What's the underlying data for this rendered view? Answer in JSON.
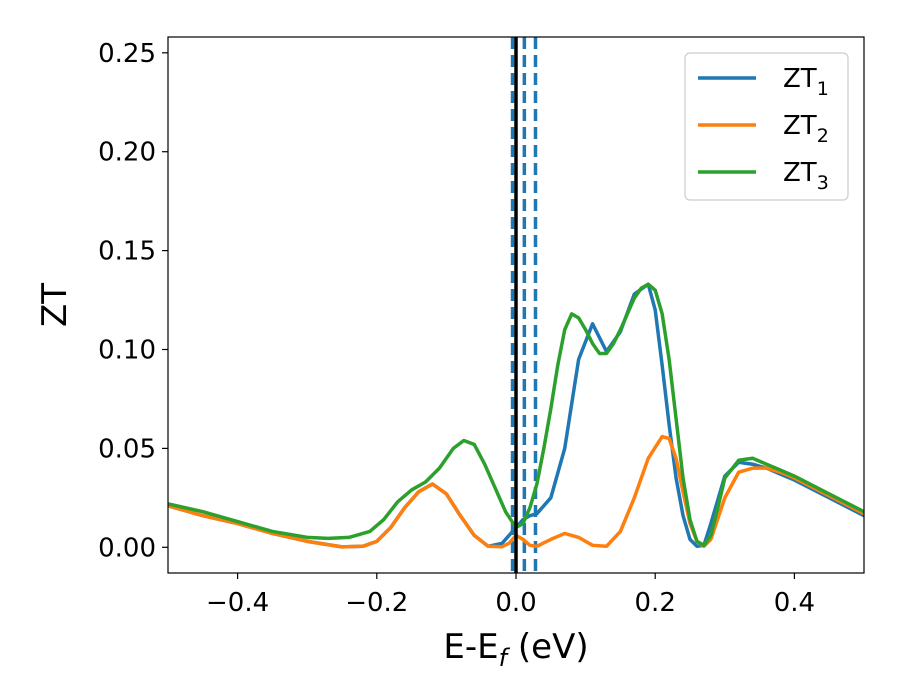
{
  "chart_data": {
    "type": "line",
    "xlabel": {
      "base": "E-E",
      "sub": "f",
      "suffix": " (eV)"
    },
    "ylabel": "ZT",
    "xlim": [
      -0.5,
      0.5
    ],
    "ylim": [
      -0.013,
      0.258
    ],
    "xticks": [
      -0.4,
      -0.2,
      0.0,
      0.2,
      0.4
    ],
    "xtick_labels": [
      "−0.4",
      "−0.2",
      "0.0",
      "0.2",
      "0.4"
    ],
    "yticks": [
      0.0,
      0.05,
      0.1,
      0.15,
      0.2,
      0.25
    ],
    "ytick_labels": [
      "0.00",
      "0.05",
      "0.10",
      "0.15",
      "0.20",
      "0.25"
    ],
    "grid": false,
    "legend_position": "top-right",
    "reference_lines": {
      "solid_black_x": 0.0,
      "dashed_blue_x": [
        -0.005,
        0.012,
        0.028
      ]
    },
    "series": [
      {
        "name": "ZT",
        "sub": "1",
        "color": "#1f77b4",
        "x": [
          -0.5,
          -0.45,
          -0.4,
          -0.35,
          -0.3,
          -0.25,
          -0.22,
          -0.2,
          -0.18,
          -0.16,
          -0.14,
          -0.12,
          -0.1,
          -0.08,
          -0.06,
          -0.04,
          -0.02,
          0.0,
          0.01,
          0.02,
          0.03,
          0.05,
          0.07,
          0.09,
          0.11,
          0.13,
          0.15,
          0.17,
          0.19,
          0.2,
          0.21,
          0.22,
          0.23,
          0.24,
          0.25,
          0.26,
          0.27,
          0.28,
          0.3,
          0.32,
          0.34,
          0.36,
          0.38,
          0.4,
          0.45,
          0.5
        ],
        "y": [
          0.021,
          0.016,
          0.012,
          0.007,
          0.003,
          0.0002,
          0.0005,
          0.003,
          0.01,
          0.02,
          0.028,
          0.032,
          0.027,
          0.016,
          0.006,
          0.0005,
          0.002,
          0.01,
          0.014,
          0.016,
          0.017,
          0.025,
          0.05,
          0.095,
          0.113,
          0.099,
          0.109,
          0.128,
          0.133,
          0.12,
          0.092,
          0.062,
          0.035,
          0.016,
          0.004,
          0.0005,
          0.001,
          0.012,
          0.036,
          0.043,
          0.042,
          0.04,
          0.037,
          0.034,
          0.025,
          0.016
        ]
      },
      {
        "name": "ZT",
        "sub": "2",
        "color": "#ff7f0e",
        "x": [
          -0.5,
          -0.45,
          -0.4,
          -0.35,
          -0.3,
          -0.25,
          -0.22,
          -0.2,
          -0.18,
          -0.16,
          -0.14,
          -0.12,
          -0.1,
          -0.08,
          -0.06,
          -0.04,
          -0.02,
          -0.01,
          0.0,
          0.01,
          0.02,
          0.03,
          0.05,
          0.07,
          0.09,
          0.11,
          0.13,
          0.15,
          0.17,
          0.19,
          0.21,
          0.22,
          0.23,
          0.24,
          0.25,
          0.26,
          0.27,
          0.28,
          0.3,
          0.32,
          0.34,
          0.36,
          0.38,
          0.4,
          0.45,
          0.5
        ],
        "y": [
          0.021,
          0.016,
          0.012,
          0.007,
          0.003,
          0.0002,
          0.0005,
          0.003,
          0.01,
          0.02,
          0.028,
          0.032,
          0.027,
          0.016,
          0.006,
          0.0005,
          0.0003,
          0.002,
          0.006,
          0.004,
          0.001,
          0.0005,
          0.004,
          0.007,
          0.005,
          0.001,
          0.0005,
          0.008,
          0.025,
          0.045,
          0.056,
          0.055,
          0.045,
          0.028,
          0.012,
          0.003,
          0.0005,
          0.004,
          0.025,
          0.038,
          0.04,
          0.04,
          0.038,
          0.035,
          0.026,
          0.017
        ]
      },
      {
        "name": "ZT",
        "sub": "3",
        "color": "#2ca02c",
        "x": [
          -0.5,
          -0.45,
          -0.4,
          -0.35,
          -0.3,
          -0.27,
          -0.24,
          -0.21,
          -0.19,
          -0.17,
          -0.15,
          -0.13,
          -0.11,
          -0.09,
          -0.075,
          -0.06,
          -0.045,
          -0.03,
          -0.015,
          0.0,
          0.01,
          0.02,
          0.03,
          0.04,
          0.05,
          0.06,
          0.07,
          0.08,
          0.09,
          0.1,
          0.11,
          0.12,
          0.13,
          0.14,
          0.15,
          0.16,
          0.17,
          0.18,
          0.19,
          0.2,
          0.21,
          0.22,
          0.23,
          0.24,
          0.25,
          0.26,
          0.27,
          0.28,
          0.29,
          0.3,
          0.32,
          0.34,
          0.36,
          0.38,
          0.4,
          0.45,
          0.5
        ],
        "y": [
          0.022,
          0.018,
          0.013,
          0.008,
          0.005,
          0.0045,
          0.005,
          0.008,
          0.014,
          0.023,
          0.029,
          0.033,
          0.04,
          0.05,
          0.054,
          0.052,
          0.042,
          0.03,
          0.018,
          0.01,
          0.012,
          0.02,
          0.032,
          0.05,
          0.07,
          0.092,
          0.11,
          0.118,
          0.116,
          0.11,
          0.103,
          0.098,
          0.098,
          0.103,
          0.11,
          0.118,
          0.126,
          0.131,
          0.133,
          0.13,
          0.118,
          0.095,
          0.065,
          0.035,
          0.014,
          0.003,
          0.001,
          0.006,
          0.02,
          0.035,
          0.044,
          0.045,
          0.042,
          0.039,
          0.036,
          0.027,
          0.018
        ]
      }
    ]
  }
}
